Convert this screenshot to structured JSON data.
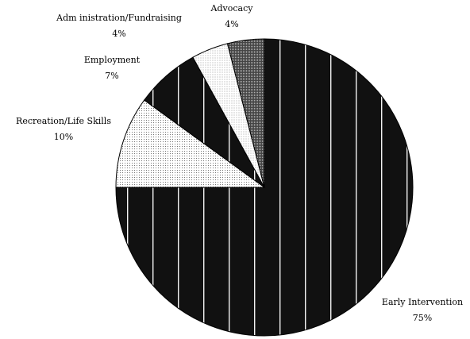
{
  "chart_data": {
    "type": "pie",
    "title": "",
    "start_angle_deg": 0,
    "direction": "clockwise",
    "slices": [
      {
        "label": "Early Intervention",
        "value": 75,
        "value_label": "75%",
        "fill": "#111111",
        "pattern": "vertical-lines"
      },
      {
        "label": "Recreation/Life Skills",
        "value": 10,
        "value_label": "10%",
        "fill": "#ffffff",
        "pattern": "fine-dots"
      },
      {
        "label": "Employment",
        "value": 7,
        "value_label": "7%",
        "fill": "#1a1a1a",
        "pattern": "vertical-lines"
      },
      {
        "label": "Adm inistration/Fundraising",
        "value": 4,
        "value_label": "4%",
        "fill": "#ffffff",
        "pattern": "light-dots"
      },
      {
        "label": "Advocacy",
        "value": 4,
        "value_label": "4%",
        "fill": "#6a6a6a",
        "pattern": "dense-dots"
      }
    ]
  }
}
